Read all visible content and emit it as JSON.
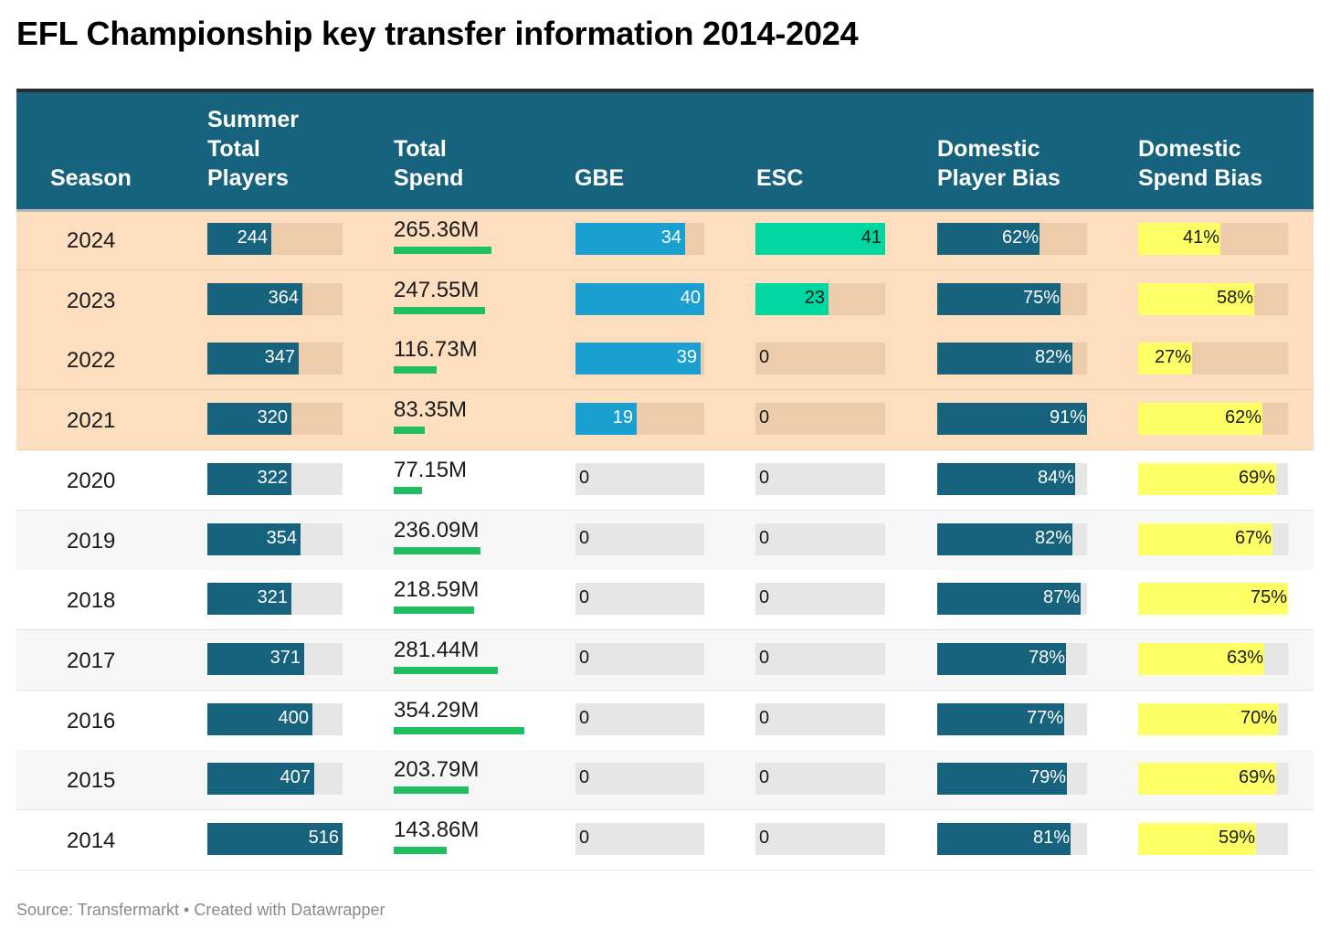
{
  "title": "EFL Championship key transfer information 2014-2024",
  "source": "Source: Transfermarkt • Created with Datawrapper",
  "colors": {
    "header_bg": "#17627c",
    "highlight_row": "#fddfc0",
    "highlight_track": "#ecccab",
    "row_alt": "#f7f7f7",
    "track": "#e6e6e6",
    "players_bar": "#17627c",
    "spend_bar": "#1fbf5f",
    "gbe_bar": "#1aa0d0",
    "esc_bar": "#00d6a0",
    "domestic_player_bar": "#17627c",
    "domestic_spend_bar": "#ffff66"
  },
  "columns": {
    "season": [
      "Season"
    ],
    "players": [
      "Summer",
      "Total",
      "Players"
    ],
    "spend": [
      "Total",
      "Spend"
    ],
    "gbe": [
      "GBE"
    ],
    "esc": [
      "ESC"
    ],
    "dom_player": [
      "Domestic",
      "Player Bias"
    ],
    "dom_spend": [
      "Domestic",
      "Spend Bias"
    ]
  },
  "chart_data": {
    "type": "table",
    "title": "EFL Championship key transfer information 2014-2024",
    "columns": [
      "Season",
      "Summer Total Players",
      "Total Spend",
      "GBE",
      "ESC",
      "Domestic Player Bias",
      "Domestic Spend Bias"
    ],
    "highlighted_seasons": [
      "2024",
      "2023",
      "2022",
      "2021"
    ],
    "rows": [
      {
        "season": "2024",
        "players": 244,
        "spend": "265.36M",
        "spend_value": 265.36,
        "gbe": 34,
        "esc": 41,
        "dom_player": "62%",
        "dom_player_value": 62,
        "dom_spend": "41%",
        "dom_spend_value": 41
      },
      {
        "season": "2023",
        "players": 364,
        "spend": "247.55M",
        "spend_value": 247.55,
        "gbe": 40,
        "esc": 23,
        "dom_player": "75%",
        "dom_player_value": 75,
        "dom_spend": "58%",
        "dom_spend_value": 58
      },
      {
        "season": "2022",
        "players": 347,
        "spend": "116.73M",
        "spend_value": 116.73,
        "gbe": 39,
        "esc": 0,
        "dom_player": "82%",
        "dom_player_value": 82,
        "dom_spend": "27%",
        "dom_spend_value": 27
      },
      {
        "season": "2021",
        "players": 320,
        "spend": "83.35M",
        "spend_value": 83.35,
        "gbe": 19,
        "esc": 0,
        "dom_player": "91%",
        "dom_player_value": 91,
        "dom_spend": "62%",
        "dom_spend_value": 62
      },
      {
        "season": "2020",
        "players": 322,
        "spend": "77.15M",
        "spend_value": 77.15,
        "gbe": 0,
        "esc": 0,
        "dom_player": "84%",
        "dom_player_value": 84,
        "dom_spend": "69%",
        "dom_spend_value": 69
      },
      {
        "season": "2019",
        "players": 354,
        "spend": "236.09M",
        "spend_value": 236.09,
        "gbe": 0,
        "esc": 0,
        "dom_player": "82%",
        "dom_player_value": 82,
        "dom_spend": "67%",
        "dom_spend_value": 67
      },
      {
        "season": "2018",
        "players": 321,
        "spend": "218.59M",
        "spend_value": 218.59,
        "gbe": 0,
        "esc": 0,
        "dom_player": "87%",
        "dom_player_value": 87,
        "dom_spend": "75%",
        "dom_spend_value": 75
      },
      {
        "season": "2017",
        "players": 371,
        "spend": "281.44M",
        "spend_value": 281.44,
        "gbe": 0,
        "esc": 0,
        "dom_player": "78%",
        "dom_player_value": 78,
        "dom_spend": "63%",
        "dom_spend_value": 63
      },
      {
        "season": "2016",
        "players": 400,
        "spend": "354.29M",
        "spend_value": 354.29,
        "gbe": 0,
        "esc": 0,
        "dom_player": "77%",
        "dom_player_value": 77,
        "dom_spend": "70%",
        "dom_spend_value": 70
      },
      {
        "season": "2015",
        "players": 407,
        "spend": "203.79M",
        "spend_value": 203.79,
        "gbe": 0,
        "esc": 0,
        "dom_player": "79%",
        "dom_player_value": 79,
        "dom_spend": "69%",
        "dom_spend_value": 69
      },
      {
        "season": "2014",
        "players": 516,
        "spend": "143.86M",
        "spend_value": 143.86,
        "gbe": 0,
        "esc": 0,
        "dom_player": "81%",
        "dom_player_value": 81,
        "dom_spend": "59%",
        "dom_spend_value": 59
      }
    ],
    "scales": {
      "players_max": 516,
      "spend_max": 354.29,
      "gbe_max": 40,
      "esc_max": 41,
      "dom_player_max": 91,
      "dom_spend_max": 75
    }
  }
}
